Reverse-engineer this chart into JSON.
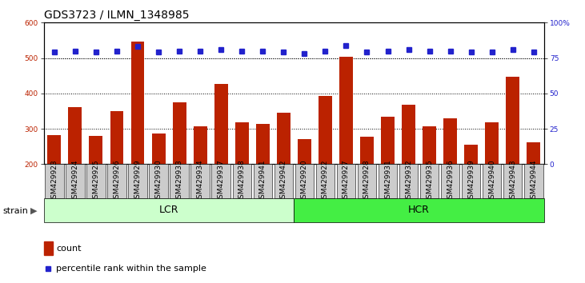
{
  "title": "GDS3723 / ILMN_1348985",
  "categories": [
    "GSM429923",
    "GSM429924",
    "GSM429925",
    "GSM429926",
    "GSM429929",
    "GSM429930",
    "GSM429933",
    "GSM429934",
    "GSM429937",
    "GSM429938",
    "GSM429941",
    "GSM429942",
    "GSM429920",
    "GSM429922",
    "GSM429927",
    "GSM429928",
    "GSM429931",
    "GSM429932",
    "GSM429935",
    "GSM429936",
    "GSM429939",
    "GSM429940",
    "GSM429943",
    "GSM429944"
  ],
  "bar_values": [
    282,
    361,
    279,
    350,
    546,
    287,
    375,
    308,
    426,
    318,
    313,
    345,
    270,
    392,
    503,
    277,
    334,
    367,
    307,
    330,
    255,
    318,
    447,
    261
  ],
  "percentile_values": [
    79,
    80,
    79,
    80,
    83,
    79,
    80,
    80,
    81,
    80,
    80,
    79,
    78,
    80,
    84,
    79,
    80,
    81,
    80,
    80,
    79,
    79,
    81,
    79
  ],
  "lcr_count": 12,
  "hcr_count": 12,
  "bar_color": "#bb2200",
  "percentile_color": "#2222cc",
  "lcr_color": "#ccffcc",
  "hcr_color": "#44ee44",
  "xtick_bg_color": "#cccccc",
  "ylim_left": [
    200,
    600
  ],
  "ylim_right": [
    0,
    100
  ],
  "yticks_left": [
    200,
    300,
    400,
    500,
    600
  ],
  "yticks_right": [
    0,
    25,
    50,
    75,
    100
  ],
  "grid_values": [
    300,
    400,
    500
  ],
  "legend_count_label": "count",
  "legend_percentile_label": "percentile rank within the sample",
  "strain_label": "strain",
  "lcr_label": "LCR",
  "hcr_label": "HCR",
  "title_fontsize": 10,
  "tick_fontsize": 6.5,
  "bar_width": 0.65,
  "plot_bg_color": "#ffffff",
  "fig_bg_color": "#ffffff"
}
